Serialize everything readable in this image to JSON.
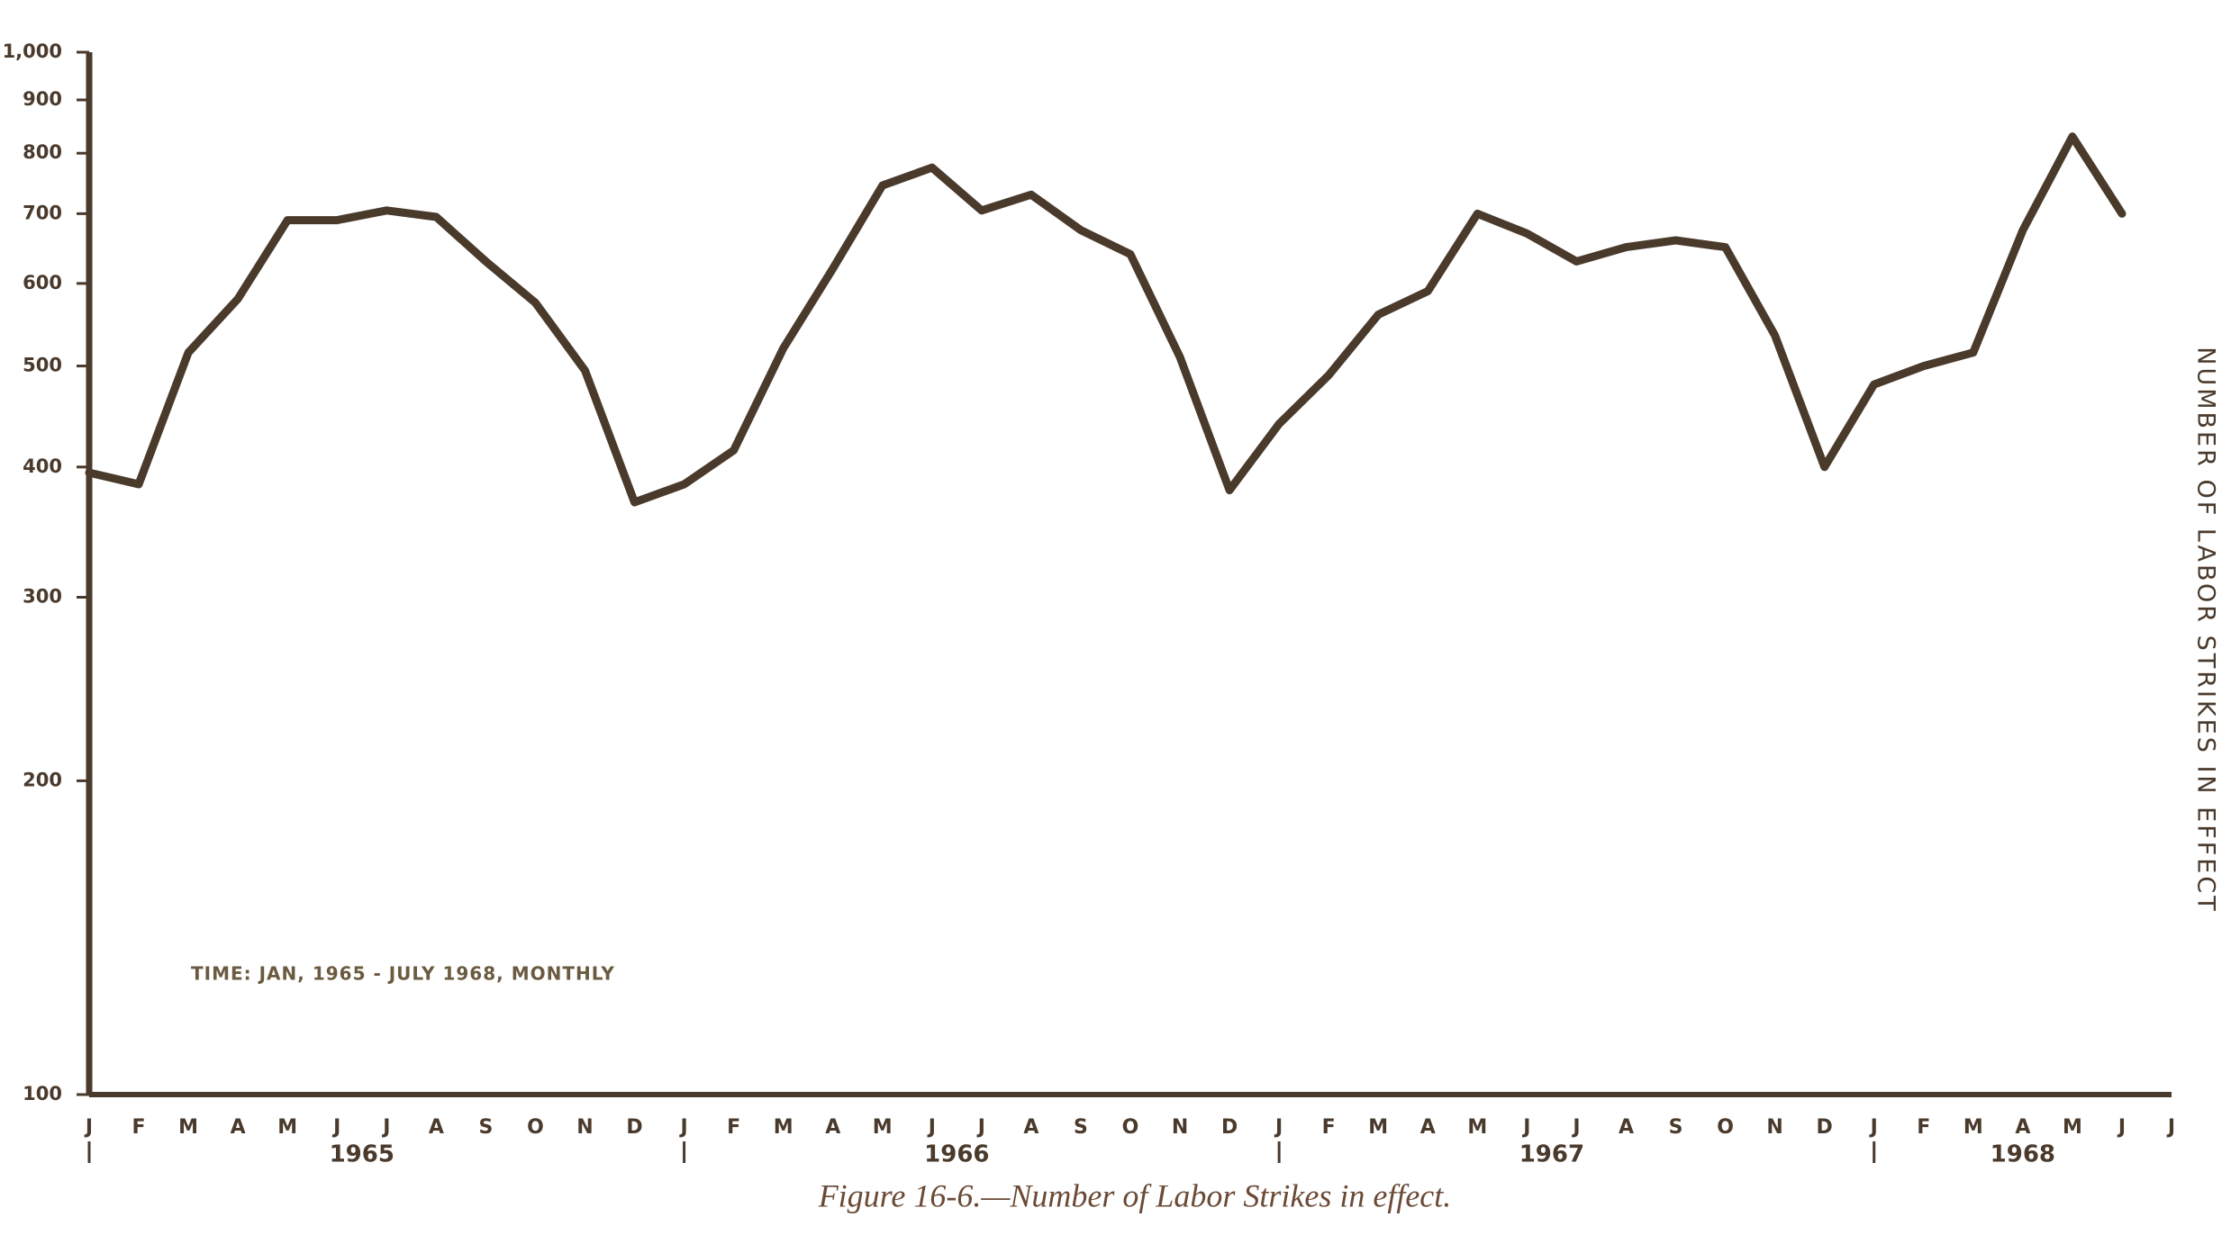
{
  "chart_data": {
    "type": "line",
    "title": "Figure 16-6.—Number of Labor Strikes in effect.",
    "annotation": "TIME: JAN, 1965 - JULY 1968, MONTHLY",
    "y_label": "NUMBER OF LABOR STRIKES IN EFFECT",
    "y_scale": "log",
    "ylim": [
      100,
      1000
    ],
    "yticks": [
      100,
      200,
      300,
      400,
      500,
      600,
      700,
      800,
      900,
      {
        "value": 1000,
        "label": "1,000"
      }
    ],
    "categories": [
      "J",
      "F",
      "M",
      "A",
      "M",
      "J",
      "J",
      "A",
      "S",
      "O",
      "N",
      "D",
      "J",
      "F",
      "M",
      "A",
      "M",
      "J",
      "J",
      "A",
      "S",
      "O",
      "N",
      "D",
      "J",
      "F",
      "M",
      "A",
      "M",
      "J",
      "J",
      "A",
      "S",
      "O",
      "N",
      "D",
      "J",
      "F",
      "M",
      "A",
      "M",
      "J",
      "J"
    ],
    "years": [
      "1965",
      "1966",
      "1967",
      "1968"
    ],
    "series": [
      {
        "color": "#4a3a2c",
        "values": [
          395,
          385,
          515,
          580,
          690,
          690,
          705,
          695,
          630,
          575,
          495,
          370,
          385,
          415,
          520,
          620,
          745,
          775,
          705,
          730,
          675,
          640,
          510,
          380,
          440,
          490,
          560,
          590,
          700,
          670,
          630,
          650,
          660,
          650,
          535,
          400,
          480,
          500,
          515,
          675,
          830,
          700,
          null
        ]
      }
    ]
  }
}
